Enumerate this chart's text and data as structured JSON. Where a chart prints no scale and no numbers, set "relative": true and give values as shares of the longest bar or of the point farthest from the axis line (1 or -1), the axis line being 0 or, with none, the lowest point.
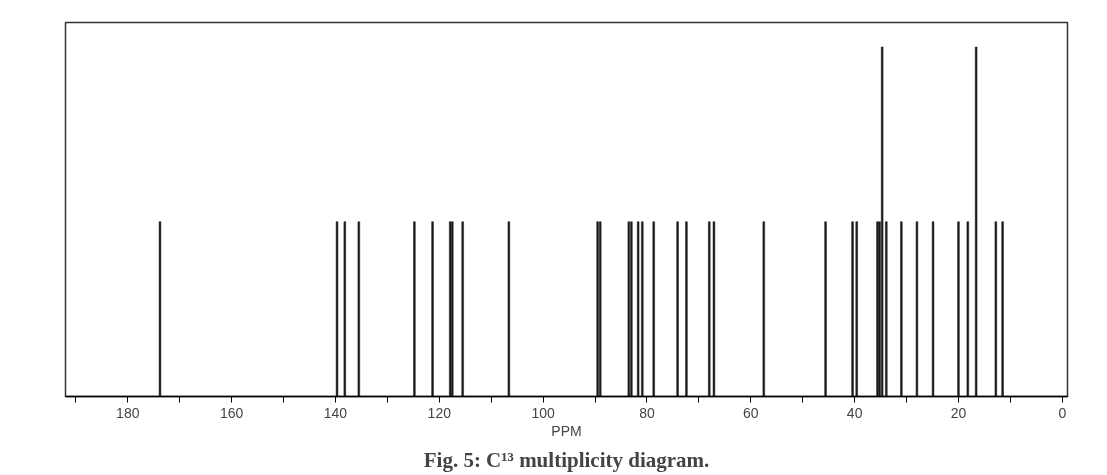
{
  "chart_data": {
    "type": "bar",
    "relative": true,
    "title": "Fig. 5: C¹³ multiplicity diagram.",
    "xlabel": "PPM",
    "x": [
      173.8,
      139.7,
      138.2,
      135.5,
      124.8,
      121.3,
      117.9,
      117.5,
      115.5,
      106.6,
      89.5,
      89.0,
      83.5,
      83.0,
      81.7,
      80.9,
      78.7,
      74.1,
      72.4,
      68.0,
      67.1,
      57.5,
      45.6,
      40.4,
      39.6,
      35.6,
      35.2,
      34.7,
      33.9,
      31.0,
      28.0,
      24.9,
      20.0,
      18.2,
      16.6,
      12.8,
      11.5
    ],
    "values": [
      0.5,
      0.5,
      0.5,
      0.5,
      0.5,
      0.5,
      0.5,
      0.5,
      0.5,
      0.5,
      0.5,
      0.5,
      0.5,
      0.5,
      0.5,
      0.5,
      0.5,
      0.5,
      0.5,
      0.5,
      0.5,
      0.5,
      0.5,
      0.5,
      0.5,
      0.5,
      0.5,
      1,
      0.5,
      0.5,
      0.5,
      0.5,
      0.5,
      0.5,
      1,
      0.5,
      0.5
    ],
    "color": "#1a1a1a",
    "xlim": [
      192,
      -1
    ],
    "xticks": [
      {
        "value": 190,
        "label": null
      },
      180,
      {
        "value": 170,
        "label": null
      },
      160,
      {
        "value": 150,
        "label": null
      },
      140,
      {
        "value": 130,
        "label": null
      },
      120,
      {
        "value": 110,
        "label": null
      },
      100,
      {
        "value": 90,
        "label": null
      },
      80,
      {
        "value": 70,
        "label": null
      },
      60,
      {
        "value": 50,
        "label": null
      },
      40,
      {
        "value": 30,
        "label": null
      },
      20,
      {
        "value": 10,
        "label": null
      },
      0
    ],
    "grid": false
  }
}
